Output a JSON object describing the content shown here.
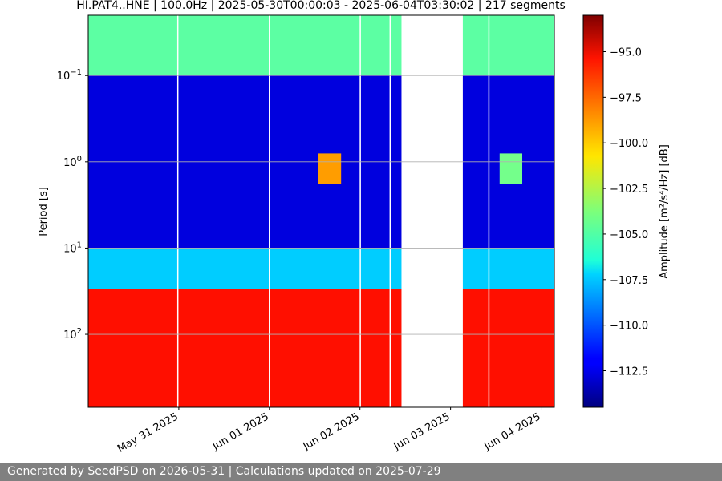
{
  "chart_data": {
    "type": "heatmap",
    "title": "HI.PAT4..HNE | 100.0Hz | 2025-05-30T00:00:03 - 2025-06-04T03:30:02 | 217 segments",
    "ylabel": "Period [s]",
    "y_scale": "log",
    "y_inverted": true,
    "ylim": [
      0.02,
      700
    ],
    "y_ticks": [
      {
        "value": 0.1,
        "base": "10",
        "exp": "−1"
      },
      {
        "value": 1,
        "base": "10",
        "exp": "0"
      },
      {
        "value": 10,
        "base": "10",
        "exp": "1"
      },
      {
        "value": 100,
        "base": "10",
        "exp": "2"
      }
    ],
    "xlim": [
      "2025-05-30T00:00:03",
      "2025-06-04T03:30:02"
    ],
    "x_ticks": [
      {
        "date": "2025-05-31",
        "label": "May 31 2025"
      },
      {
        "date": "2025-06-01",
        "label": "Jun 01 2025"
      },
      {
        "date": "2025-06-02",
        "label": "Jun 02 2025"
      },
      {
        "date": "2025-06-03",
        "label": "Jun 03 2025"
      },
      {
        "date": "2025-06-04",
        "label": "Jun 04 2025"
      }
    ],
    "grid": true,
    "colormap": "jet",
    "colorbar": {
      "label": "Amplitude [m²/s⁴/Hz] [dB]",
      "min": -114.5,
      "max": -93.0,
      "ticks": [
        -95.0,
        -97.5,
        -100.0,
        -102.5,
        -105.0,
        -107.5,
        -110.0,
        -112.5
      ],
      "tick_labels": [
        "−95.0",
        "−97.5",
        "−100.0",
        "−102.5",
        "−105.0",
        "−107.5",
        "−110.0",
        "−112.5"
      ]
    },
    "data_gaps": [
      {
        "start": "2025-05-30T23:35:00",
        "end": "2025-05-30T23:50:00"
      },
      {
        "start": "2025-05-31T23:50:00",
        "end": "2025-06-01T00:05:00"
      },
      {
        "start": "2025-06-01T23:55:00",
        "end": "2025-06-02T00:15:00"
      },
      {
        "start": "2025-06-02T07:50:00",
        "end": "2025-06-02T08:20:00"
      },
      {
        "start": "2025-06-02T11:00:00",
        "end": "2025-06-03T03:15:00"
      },
      {
        "start": "2025-06-03T10:00:00",
        "end": "2025-06-03T10:10:00"
      }
    ],
    "features": [
      {
        "start": "2025-05-30T00:00:00",
        "end": "2025-06-04T03:30:00",
        "period_min": 0.02,
        "period_max": 0.1,
        "level": -104.5,
        "description": "short periods"
      },
      {
        "start": "2025-05-30T00:00:00",
        "end": "2025-06-04T03:30:00",
        "period_min": 0.1,
        "period_max": 10,
        "level": -112.5,
        "description": "microseism band"
      },
      {
        "start": "2025-05-30T00:00:00",
        "end": "2025-06-04T03:30:00",
        "period_min": 30,
        "period_max": 700,
        "level": -96.0,
        "description": "long periods"
      },
      {
        "start": "2025-06-01T13:00:00",
        "end": "2025-06-01T19:00:00",
        "period_min": 0.8,
        "period_max": 1.8,
        "level": -99.0,
        "description": "feature"
      },
      {
        "start": "2025-06-03T13:00:00",
        "end": "2025-06-03T19:00:00",
        "period_min": 0.8,
        "period_max": 1.8,
        "level": -104.0,
        "description": "feature"
      }
    ]
  },
  "footer": {
    "text": "Generated by SeedPSD on 2026-05-31 | Calculations updated on 2025-07-29"
  }
}
